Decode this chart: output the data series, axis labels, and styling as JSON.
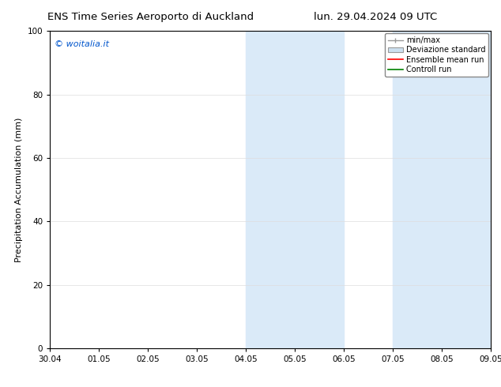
{
  "title_left": "ENS Time Series Aeroporto di Auckland",
  "title_right": "lun. 29.04.2024 09 UTC",
  "ylabel": "Precipitation Accumulation (mm)",
  "ylim": [
    0,
    100
  ],
  "yticks": [
    0,
    20,
    40,
    60,
    80,
    100
  ],
  "xtick_labels": [
    "30.04",
    "01.05",
    "02.05",
    "03.05",
    "04.05",
    "05.05",
    "06.05",
    "07.05",
    "08.05",
    "09.05"
  ],
  "watermark": "© woitalia.it",
  "watermark_color": "#0055cc",
  "bg_color": "#ffffff",
  "plot_bg_color": "#ffffff",
  "shaded_regions": [
    {
      "xstart": 4.0,
      "xend": 6.0,
      "color": "#daeaf8"
    },
    {
      "xstart": 7.0,
      "xend": 9.0,
      "color": "#daeaf8"
    }
  ],
  "legend_entries": [
    {
      "label": "min/max",
      "color": "#aaaaaa",
      "style": "minmax"
    },
    {
      "label": "Deviazione standard",
      "color": "#ccddee",
      "style": "std"
    },
    {
      "label": "Ensemble mean run",
      "color": "#ff0000",
      "style": "line"
    },
    {
      "label": "Controll run",
      "color": "#008000",
      "style": "line"
    }
  ],
  "font_size_title": 9.5,
  "font_size_ticks": 7.5,
  "font_size_ylabel": 8,
  "font_size_legend": 7,
  "font_size_watermark": 8,
  "grid_color": "#dddddd",
  "tick_color": "#000000",
  "spine_color": "#000000"
}
